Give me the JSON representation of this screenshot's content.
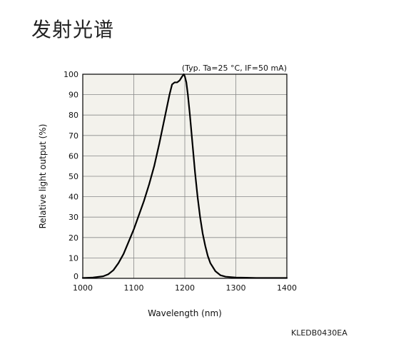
{
  "page": {
    "title": "发射光谱",
    "code": "KLEDB0430EA"
  },
  "colors": {
    "plot_background": "#f3f2ec",
    "grid": "#888888",
    "curve": "#000000",
    "frame": "#000000"
  },
  "chart_data": {
    "type": "line",
    "title": "",
    "annotation": "(Typ. Ta=25 °C, IF=50 mA)",
    "xlabel": "Wavelength (nm)",
    "ylabel": "Relative light output (%)",
    "xlim": [
      1000,
      1400
    ],
    "ylim": [
      0,
      100
    ],
    "xticks": [
      1000,
      1100,
      1200,
      1300,
      1400
    ],
    "yticks": [
      0,
      10,
      20,
      30,
      40,
      50,
      60,
      70,
      80,
      90,
      100
    ],
    "grid": true,
    "series": [
      {
        "x": [
          1000,
          1020,
          1040,
          1050,
          1060,
          1070,
          1080,
          1090,
          1100,
          1110,
          1120,
          1130,
          1140,
          1150,
          1160,
          1170,
          1175,
          1180,
          1185,
          1190,
          1195,
          1198,
          1200,
          1203,
          1206,
          1210,
          1215,
          1220,
          1225,
          1230,
          1235,
          1240,
          1245,
          1250,
          1260,
          1270,
          1280,
          1300,
          1320,
          1340,
          1370,
          1400
        ],
        "y": [
          0.2,
          0.4,
          1,
          2,
          4,
          7.5,
          12,
          18,
          24,
          31,
          38,
          46,
          55,
          66,
          78,
          90,
          95,
          96,
          96,
          97,
          99,
          100,
          99,
          96,
          90,
          80,
          66,
          52,
          40,
          30,
          22,
          16,
          11,
          7.5,
          3.5,
          1.5,
          0.8,
          0.4,
          0.3,
          0.2,
          0.2,
          0.2
        ]
      }
    ]
  }
}
